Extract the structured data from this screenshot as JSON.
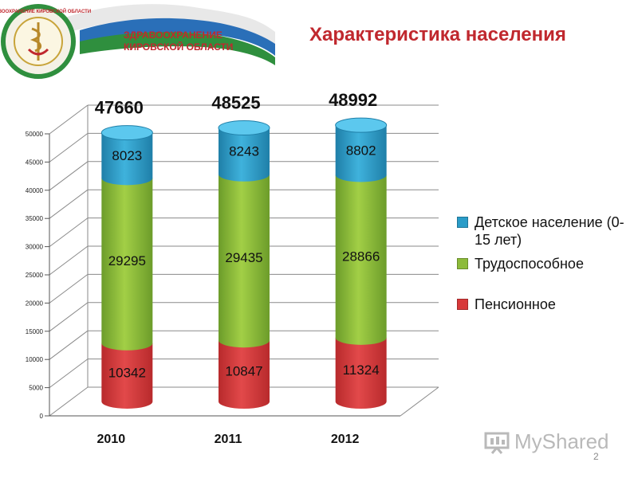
{
  "header": {
    "title": "Характеристика населения",
    "banner_line1": "ЗДРАВООХРАНЕНИЕ",
    "banner_line2": "КИРОВСКОЙ ОБЛАСТИ",
    "emblem_text": "ЗДРАВООХРАНЕНИЕ КИРОВСКОЙ ОБЛАСТИ"
  },
  "chart_data": {
    "type": "bar",
    "stacked": true,
    "categories": [
      "2010",
      "2011",
      "2012"
    ],
    "series": [
      {
        "name": "Пенсионное",
        "values": [
          10342,
          10847,
          11324
        ],
        "color": "#d8393a"
      },
      {
        "name": "Трудоспособное",
        "values": [
          29295,
          29435,
          28866
        ],
        "color": "#8dbb3a"
      },
      {
        "name": "Детское население (0-15 лет)",
        "values": [
          8023,
          8243,
          8802
        ],
        "color": "#2a9cc8"
      }
    ],
    "totals": [
      "47660",
      "48525",
      "48992"
    ],
    "ylim": [
      0,
      50000
    ],
    "yticks": [
      "0",
      "5000",
      "10000",
      "15000",
      "20000",
      "25000",
      "30000",
      "35000",
      "40000",
      "45000",
      "50000"
    ],
    "grid": true,
    "legend_position": "right"
  },
  "legend": [
    {
      "label": "Детское население (0-15 лет)",
      "color": "#2a9cc8"
    },
    {
      "label": "Трудоспособное",
      "color": "#8dbb3a"
    },
    {
      "label": "Пенсионное",
      "color": "#d8393a"
    }
  ],
  "watermark": "MyShared",
  "page_number": "2"
}
